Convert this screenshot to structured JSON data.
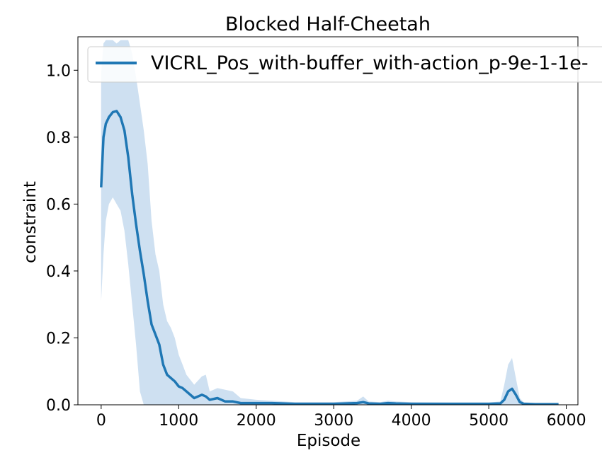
{
  "chart_data": {
    "type": "line",
    "title": "Blocked Half-Cheetah",
    "xlabel": "Episode",
    "ylabel": "constraint",
    "xlim": [
      -300,
      6150
    ],
    "ylim": [
      0,
      1.1
    ],
    "xticks": [
      0,
      1000,
      2000,
      3000,
      4000,
      5000,
      6000
    ],
    "xtick_labels": [
      "0",
      "1000",
      "2000",
      "3000",
      "4000",
      "5000",
      "6000"
    ],
    "yticks": [
      0.0,
      0.2,
      0.4,
      0.6,
      0.8,
      1.0
    ],
    "ytick_labels": [
      "0.0",
      "0.2",
      "0.4",
      "0.6",
      "0.8",
      "1.0"
    ],
    "grid": false,
    "legend_position": "top-right",
    "series": [
      {
        "name": "VICRL_Pos_with-buffer_with-action_p-9e-1-1e-",
        "color": "#1f77b4",
        "band_color": "#c6dbef",
        "x": [
          0,
          30,
          60,
          100,
          150,
          200,
          250,
          300,
          350,
          400,
          450,
          500,
          550,
          600,
          650,
          700,
          750,
          800,
          850,
          900,
          950,
          1000,
          1050,
          1100,
          1200,
          1300,
          1350,
          1400,
          1500,
          1600,
          1700,
          1800,
          2000,
          2200,
          2500,
          3000,
          3300,
          3380,
          3450,
          3600,
          3700,
          3800,
          4000,
          4500,
          5000,
          5150,
          5200,
          5250,
          5300,
          5350,
          5400,
          5450,
          5600,
          5900
        ],
        "y": [
          0.65,
          0.8,
          0.84,
          0.86,
          0.875,
          0.878,
          0.86,
          0.82,
          0.74,
          0.63,
          0.54,
          0.46,
          0.39,
          0.31,
          0.24,
          0.21,
          0.18,
          0.12,
          0.09,
          0.08,
          0.07,
          0.055,
          0.05,
          0.04,
          0.02,
          0.03,
          0.025,
          0.015,
          0.02,
          0.01,
          0.01,
          0.005,
          0.005,
          0.005,
          0.003,
          0.003,
          0.005,
          0.008,
          0.004,
          0.003,
          0.005,
          0.004,
          0.003,
          0.003,
          0.003,
          0.004,
          0.015,
          0.04,
          0.048,
          0.03,
          0.008,
          0.003,
          0.002,
          0.002
        ],
        "lower": [
          0.31,
          0.45,
          0.55,
          0.6,
          0.62,
          0.6,
          0.58,
          0.52,
          0.42,
          0.3,
          0.18,
          0.04,
          0.0,
          0.0,
          0.0,
          0.0,
          0.0,
          0.0,
          0.0,
          0.0,
          0.0,
          0.0,
          0.0,
          0.0,
          0.0,
          0.0,
          0.0,
          0.0,
          0.0,
          0.0,
          0.0,
          0.0,
          0.0,
          0.0,
          0.0,
          0.0,
          0.0,
          0.0,
          0.0,
          0.0,
          0.0,
          0.0,
          0.0,
          0.0,
          0.0,
          0.0,
          0.0,
          0.0,
          0.0,
          0.0,
          0.0,
          0.0,
          0.0,
          0.0
        ],
        "upper": [
          0.99,
          1.08,
          1.09,
          1.09,
          1.09,
          1.08,
          1.09,
          1.09,
          1.09,
          1.05,
          0.98,
          0.9,
          0.82,
          0.72,
          0.55,
          0.45,
          0.4,
          0.3,
          0.25,
          0.23,
          0.2,
          0.15,
          0.12,
          0.09,
          0.06,
          0.085,
          0.09,
          0.04,
          0.05,
          0.045,
          0.04,
          0.02,
          0.015,
          0.012,
          0.008,
          0.008,
          0.012,
          0.025,
          0.01,
          0.008,
          0.012,
          0.01,
          0.008,
          0.007,
          0.007,
          0.01,
          0.06,
          0.12,
          0.14,
          0.08,
          0.02,
          0.008,
          0.005,
          0.005
        ]
      }
    ]
  }
}
